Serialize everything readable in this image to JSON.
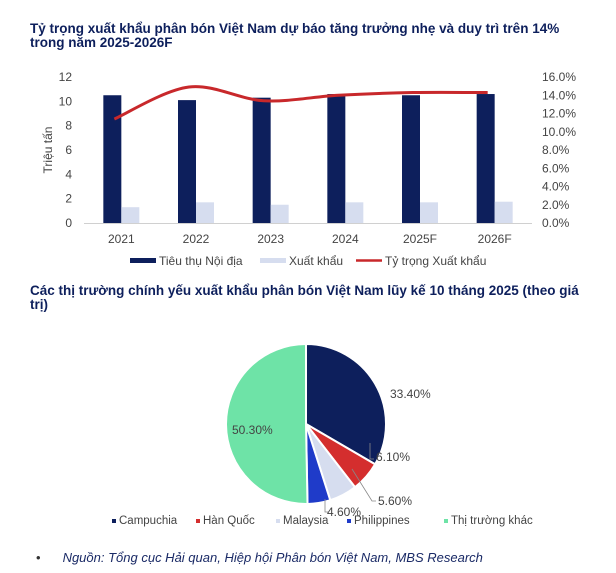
{
  "charts_titles": {
    "top": "Tỷ trọng xuất khẩu phân bón Việt Nam dự báo tăng trưởng nhẹ và duy trì trên 14% trong năm 2025-2026F",
    "bottom": "Các thị trường chính yếu xuất khẩu phân bón Việt Nam lũy kế 10 tháng 2025 (theo giá trị)"
  },
  "source": {
    "bullet": "•",
    "text": "Nguồn: Tổng cục Hải quan, Hiệp hội Phân bón Việt Nam, MBS Research"
  },
  "colors": {
    "navy": "#0d1f5c",
    "light": "#d6ddef",
    "red": "#d42e2e",
    "blue": "#1f3bc9",
    "green": "#6ee3a7",
    "title": "#0d1f5c"
  },
  "chart_data": [
    {
      "type": "bar",
      "title": "Tỷ trọng xuất khẩu phân bón Việt Nam dự báo tăng trưởng nhẹ và duy trì trên 14% trong năm 2025-2026F",
      "categories": [
        "2021",
        "2022",
        "2023",
        "2024",
        "2025F",
        "2026F"
      ],
      "series": [
        {
          "name": "Tiêu thụ Nội địa",
          "type": "bar",
          "axis": "left",
          "values": [
            10.5,
            10.1,
            10.3,
            10.6,
            10.5,
            10.6
          ]
        },
        {
          "name": "Xuất khẩu",
          "type": "bar",
          "axis": "left",
          "values": [
            1.3,
            1.7,
            1.5,
            1.7,
            1.7,
            1.75
          ]
        },
        {
          "name": "Tỷ trọng Xuất khẩu",
          "type": "line",
          "axis": "right",
          "values": [
            11.4,
            14.9,
            13.4,
            14.0,
            14.3,
            14.3
          ]
        }
      ],
      "ylabel": "Triệu tấn",
      "ylim": [
        0,
        12
      ],
      "yticks": [
        "0",
        "2",
        "4",
        "6",
        "8",
        "10",
        "12"
      ],
      "y2lim": [
        0,
        16
      ],
      "y2ticks": [
        "0.0%",
        "2.0%",
        "4.0%",
        "6.0%",
        "8.0%",
        "10.0%",
        "12.0%",
        "14.0%",
        "16.0%"
      ],
      "legend_position": "bottom",
      "grid": false
    },
    {
      "type": "pie",
      "title": "Các thị trường chính yếu xuất khẩu phân bón Việt Nam lũy kế 10 tháng 2025 (theo giá trị)",
      "categories": [
        "Campuchia",
        "Hàn Quốc",
        "Malaysia",
        "Philippines",
        "Thị trường khác"
      ],
      "values": [
        33.4,
        6.1,
        5.6,
        4.6,
        50.3
      ],
      "labels": [
        "33.40%",
        "6.10%",
        "5.60%",
        "4.60%",
        "50.30%"
      ],
      "legend_position": "bottom"
    }
  ]
}
